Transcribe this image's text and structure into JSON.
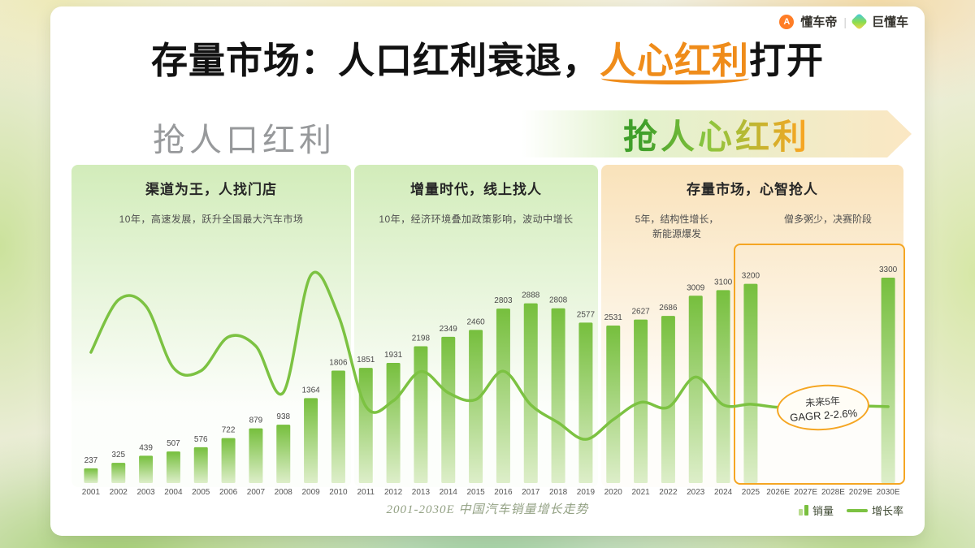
{
  "header": {
    "title_prefix": "存量市场：人口红利衰退，",
    "title_highlight": "人心红利",
    "title_suffix": "打开",
    "logo_brand_1": "懂车帝",
    "logo_divider": "|",
    "logo_brand_2": "巨懂车",
    "logo_icon_1_glyph": "A"
  },
  "banners": {
    "left_label": "抢人口红利",
    "right_label": "抢人心红利"
  },
  "sections": {
    "s1": {
      "title": "渠道为王，人找门店",
      "subtitle": "10年，高速发展，跃升全国最大汽车市场"
    },
    "s2": {
      "title": "增量时代，线上找人",
      "subtitle": "10年，经济环境叠加政策影响，波动中增长"
    },
    "s3": {
      "title": "存量市场，心智抢人",
      "subtitle_left": "5年，结构性增长，\n新能源爆发",
      "subtitle_right": "僧多粥少，决赛阶段"
    }
  },
  "annotation": {
    "line1": "未来5年",
    "line2": "GAGR 2-2.6%"
  },
  "footer": {
    "caption": "2001-2030E 中国汽车销量增长走势",
    "legend_bar": "销量",
    "legend_line": "增长率"
  },
  "colors": {
    "accent_orange": "#f08c1a",
    "highlight_border": "#f5a623",
    "bar_green_top": "#76bf3d",
    "bar_green_bottom": "#ddeec9",
    "line_green": "#7cc242",
    "panel_green": "#d2ecba",
    "panel_orange": "#f9e2ba"
  },
  "chart_data": {
    "type": "bar",
    "title": "2001-2030E 中国汽车销量增长走势",
    "xlabel": "",
    "ylabel": "销量",
    "ylim": [
      0,
      3300
    ],
    "grid": false,
    "legend_position": "bottom-right",
    "categories": [
      "2001",
      "2002",
      "2003",
      "2004",
      "2005",
      "2006",
      "2007",
      "2008",
      "2009",
      "2010",
      "2011",
      "2012",
      "2013",
      "2014",
      "2015",
      "2016",
      "2017",
      "2018",
      "2019",
      "2020",
      "2021",
      "2022",
      "2023",
      "2024",
      "2025",
      "2026E",
      "2027E",
      "2028E",
      "2029E",
      "2030E"
    ],
    "series": [
      {
        "name": "销量",
        "type": "bar",
        "values": [
          237,
          325,
          439,
          507,
          576,
          722,
          879,
          938,
          1364,
          1806,
          1851,
          1931,
          2198,
          2349,
          2460,
          2803,
          2888,
          2808,
          2577,
          2531,
          2627,
          2686,
          3009,
          3100,
          3200,
          null,
          null,
          null,
          null,
          3300
        ]
      },
      {
        "name": "增长率",
        "type": "line",
        "values_pct_estimated": [
          20,
          37,
          35,
          15,
          14,
          25,
          22,
          7,
          45,
          32,
          2.5,
          4.3,
          13.8,
          6.9,
          4.7,
          13.9,
          3,
          -2.8,
          -8.2,
          -1.8,
          3.8,
          2.2,
          12,
          3,
          3.2,
          2.2,
          2.6,
          2.2,
          2.6,
          2.4
        ]
      }
    ],
    "annotations": [
      "未来5年 GAGR 2-2.6%"
    ]
  }
}
